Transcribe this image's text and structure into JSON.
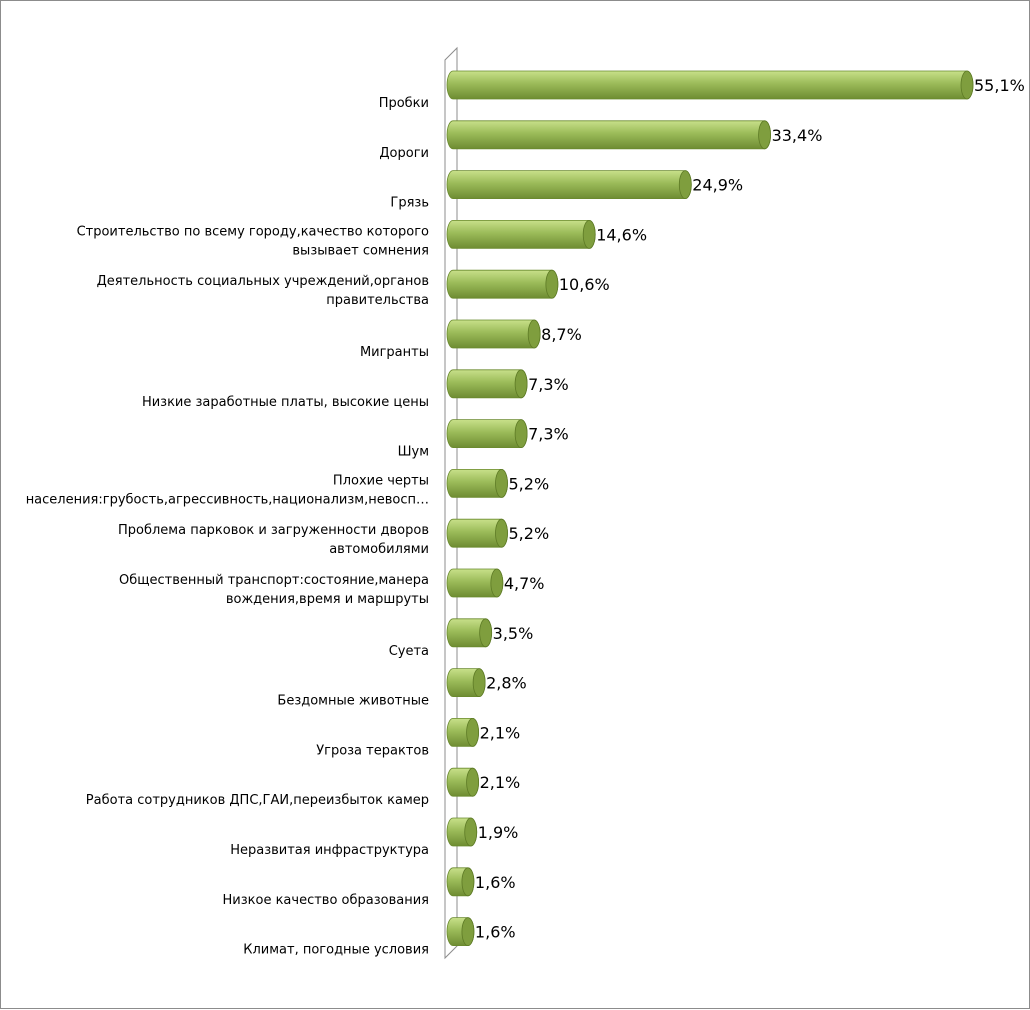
{
  "chart_data": {
    "type": "bar",
    "orientation": "horizontal",
    "style": "3d-cylinder",
    "title": "",
    "xlabel": "",
    "ylabel": "",
    "xlim": [
      0,
      55.1
    ],
    "grid": false,
    "legend": "none",
    "bar_color": "#9bbb59",
    "bar_dark_color": "#6e8c32",
    "bar_light_color": "#c8e08a",
    "categories": [
      [
        "Пробки"
      ],
      [
        "Дороги"
      ],
      [
        "Грязь"
      ],
      [
        "Строительство по всему городу,качество которого",
        "вызывает сомнения"
      ],
      [
        "Деятельность социальных учреждений,органов",
        "правительства"
      ],
      [
        "Мигранты"
      ],
      [
        "Низкие заработные платы, высокие цены"
      ],
      [
        "Шум"
      ],
      [
        "Плохие черты",
        "населения:грубость,агрессивность,национализм,невосп…"
      ],
      [
        "Проблема парковок и загруженности дворов",
        "автомобилями"
      ],
      [
        "Общественный транспорт:состояние,манера",
        "вождения,время и маршруты"
      ],
      [
        "Суета"
      ],
      [
        "Бездомные животные"
      ],
      [
        "Угроза терактов"
      ],
      [
        "Работа сотрудников ДПС,ГАИ,переизбыток камер"
      ],
      [
        "Неразвитая инфраструктура"
      ],
      [
        "Низкое качество образования"
      ],
      [
        "Климат, погодные условия"
      ]
    ],
    "values": [
      55.1,
      33.4,
      24.9,
      14.6,
      10.6,
      8.7,
      7.3,
      7.3,
      5.2,
      5.2,
      4.7,
      3.5,
      2.8,
      2.1,
      2.1,
      1.9,
      1.6,
      1.6
    ],
    "value_labels": [
      "55,1%",
      "33,4%",
      "24,9%",
      "14,6%",
      "10,6%",
      "8,7%",
      "7,3%",
      "7,3%",
      "5,2%",
      "5,2%",
      "4,7%",
      "3,5%",
      "2,8%",
      "2,1%",
      "2,1%",
      "1,9%",
      "1,6%",
      "1,6%"
    ]
  }
}
